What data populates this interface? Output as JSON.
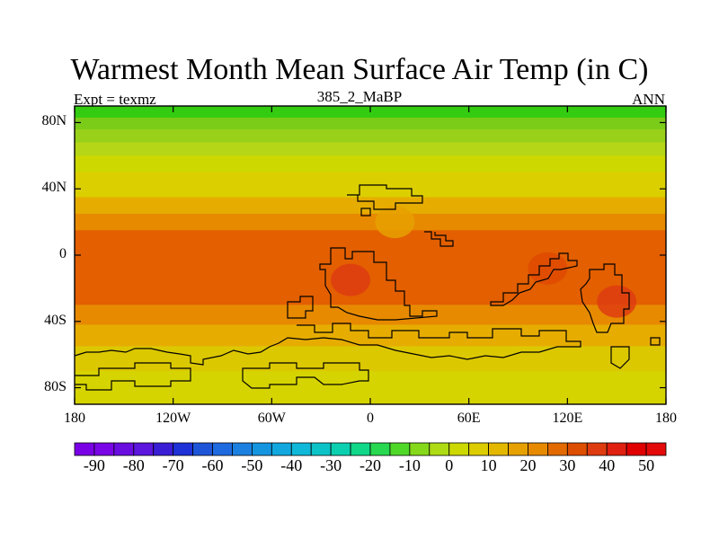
{
  "title": "Warmest Month Mean Surface Air Temp (in C)",
  "subtitle_left": "Expt = texmz",
  "subtitle_center": "385_2_MaBP",
  "subtitle_right": "ANN",
  "map": {
    "projection": "cylindrical equidistant",
    "lon_range": [
      -180,
      180
    ],
    "lat_range": [
      -90,
      90
    ],
    "lat_ticks": [
      {
        "value": 80,
        "label": "80N"
      },
      {
        "value": 40,
        "label": "40N"
      },
      {
        "value": 0,
        "label": "0"
      },
      {
        "value": -40,
        "label": "40S"
      },
      {
        "value": -80,
        "label": "80S"
      }
    ],
    "lon_ticks": [
      {
        "value": -180,
        "label": "180"
      },
      {
        "value": -120,
        "label": "120W"
      },
      {
        "value": -60,
        "label": "60W"
      },
      {
        "value": 0,
        "label": "0"
      },
      {
        "value": 60,
        "label": "60E"
      },
      {
        "value": 120,
        "label": "120E"
      },
      {
        "value": 180,
        "label": "180"
      }
    ],
    "zonal_temperature_bands": [
      {
        "lat_from": 90,
        "lat_to": 83,
        "value": 2,
        "color": "#33cc11"
      },
      {
        "lat_from": 83,
        "lat_to": 76,
        "value": 5,
        "color": "#7acc18"
      },
      {
        "lat_from": 76,
        "lat_to": 68,
        "value": 8,
        "color": "#99d11a"
      },
      {
        "lat_from": 68,
        "lat_to": 60,
        "value": 12,
        "color": "#b5d616"
      },
      {
        "lat_from": 60,
        "lat_to": 50,
        "value": 16,
        "color": "#ccd800"
      },
      {
        "lat_from": 50,
        "lat_to": 35,
        "value": 22,
        "color": "#dccf00"
      },
      {
        "lat_from": 35,
        "lat_to": 25,
        "value": 28,
        "color": "#e6ad00"
      },
      {
        "lat_from": 25,
        "lat_to": 15,
        "value": 33,
        "color": "#e78a00"
      },
      {
        "lat_from": 15,
        "lat_to": -30,
        "value": 37,
        "color": "#e35f00"
      },
      {
        "lat_from": -30,
        "lat_to": -42,
        "value": 33,
        "color": "#e78a00"
      },
      {
        "lat_from": -42,
        "lat_to": -55,
        "value": 28,
        "color": "#e6ad00"
      },
      {
        "lat_from": -55,
        "lat_to": -70,
        "value": 23,
        "color": "#dcc800"
      },
      {
        "lat_from": -70,
        "lat_to": -90,
        "value": 20,
        "color": "#d6d400"
      }
    ],
    "hot_spots": [
      {
        "lon": -12,
        "lat": -15,
        "value": 45,
        "color": "#de3c10"
      },
      {
        "lon": 150,
        "lat": -28,
        "value": 45,
        "color": "#de3c10"
      },
      {
        "lon": 108,
        "lat": -8,
        "value": 42,
        "color": "#df4a00"
      },
      {
        "lon": 15,
        "lat": 20,
        "value": 30,
        "color": "#e6a000"
      }
    ]
  },
  "colorbar": {
    "labels": [
      "-90",
      "-80",
      "-70",
      "-60",
      "-50",
      "-40",
      "-30",
      "-20",
      "-10",
      "0",
      "10",
      "20",
      "30",
      "40",
      "50"
    ],
    "label_levels": [
      -90,
      -80,
      -70,
      -60,
      -50,
      -40,
      -30,
      -20,
      -10,
      0,
      10,
      20,
      30,
      40,
      50
    ],
    "min": -95,
    "max": 55,
    "colors": [
      "#7a00e6",
      "#7a05e6",
      "#6a0de0",
      "#5c16de",
      "#3a1ed6",
      "#1e32d8",
      "#1e55d8",
      "#1e6ae0",
      "#1c80e0",
      "#1595e0",
      "#12a8df",
      "#0fb8d8",
      "#0cc4c8",
      "#0ad0b0",
      "#10d888",
      "#28d850",
      "#50d828",
      "#86d81a",
      "#aedb14",
      "#ccd800",
      "#dccc00",
      "#e4b800",
      "#e6a000",
      "#e78a00",
      "#e26a00",
      "#de4e00",
      "#de3c10",
      "#e02010",
      "#e00000",
      "#e40a0a"
    ]
  }
}
